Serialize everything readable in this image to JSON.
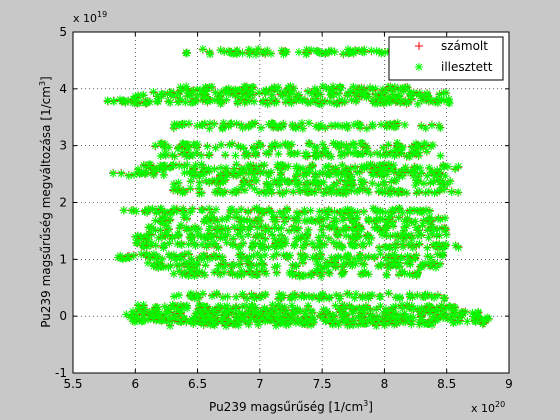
{
  "chart_data": {
    "type": "scatter",
    "xlabel": "Pu239  magsűrűség [1/cm",
    "xlabel_sup": "3",
    "xlabel_end": "]",
    "ylabel": "Pu239  magsűrűség megváltozása [1/cm",
    "ylabel_sup": "3",
    "ylabel_end": "]",
    "x_multiplier": "x 10",
    "x_multiplier_exp": "20",
    "y_multiplier": "x 10",
    "y_multiplier_exp": "19",
    "xlim": [
      5.5,
      9
    ],
    "ylim": [
      -1,
      5
    ],
    "x_ticks": [
      "5.5",
      "6",
      "6.5",
      "7",
      "7.5",
      "8",
      "8.5",
      "9"
    ],
    "y_ticks": [
      "-1",
      "0",
      "1",
      "2",
      "3",
      "4",
      "5"
    ],
    "grid": true,
    "legend_position": "top-right",
    "series": [
      {
        "name": "számolt",
        "marker": "+",
        "color": "#ff0000"
      },
      {
        "name": "illesztett",
        "marker": "*",
        "color": "#00ff00"
      }
    ],
    "bands": [
      {
        "y": 4.65,
        "x_min": 6.4,
        "x_max": 8.05,
        "n": 70
      },
      {
        "y": 4.0,
        "x_min": 6.35,
        "x_max": 8.2,
        "n": 90
      },
      {
        "y": 3.9,
        "x_min": 6.0,
        "x_max": 8.5,
        "n": 110
      },
      {
        "y": 3.78,
        "x_min": 5.77,
        "x_max": 8.6,
        "n": 140
      },
      {
        "y": 3.35,
        "x_min": 6.3,
        "x_max": 8.45,
        "n": 90
      },
      {
        "y": 3.0,
        "x_min": 6.1,
        "x_max": 8.4,
        "n": 90
      },
      {
        "y": 2.85,
        "x_min": 6.2,
        "x_max": 8.5,
        "n": 80
      },
      {
        "y": 2.62,
        "x_min": 6.0,
        "x_max": 8.6,
        "n": 110
      },
      {
        "y": 2.5,
        "x_min": 5.8,
        "x_max": 8.5,
        "n": 110
      },
      {
        "y": 2.35,
        "x_min": 6.3,
        "x_max": 8.55,
        "n": 90
      },
      {
        "y": 2.2,
        "x_min": 6.3,
        "x_max": 8.6,
        "n": 90
      },
      {
        "y": 1.85,
        "x_min": 5.9,
        "x_max": 8.4,
        "n": 110
      },
      {
        "y": 1.7,
        "x_min": 6.1,
        "x_max": 8.5,
        "n": 100
      },
      {
        "y": 1.55,
        "x_min": 6.1,
        "x_max": 8.5,
        "n": 100
      },
      {
        "y": 1.4,
        "x_min": 6.0,
        "x_max": 8.5,
        "n": 100
      },
      {
        "y": 1.25,
        "x_min": 6.0,
        "x_max": 8.6,
        "n": 110
      },
      {
        "y": 1.05,
        "x_min": 5.85,
        "x_max": 8.5,
        "n": 110
      },
      {
        "y": 0.9,
        "x_min": 6.1,
        "x_max": 8.45,
        "n": 100
      },
      {
        "y": 0.75,
        "x_min": 6.3,
        "x_max": 8.3,
        "n": 80
      },
      {
        "y": 0.35,
        "x_min": 6.3,
        "x_max": 8.5,
        "n": 90
      },
      {
        "y": 0.15,
        "x_min": 6.0,
        "x_max": 8.6,
        "n": 120
      },
      {
        "y": 0.05,
        "x_min": 5.9,
        "x_max": 8.8,
        "n": 140
      },
      {
        "y": -0.05,
        "x_min": 5.95,
        "x_max": 8.85,
        "n": 160
      },
      {
        "y": -0.12,
        "x_min": 6.2,
        "x_max": 8.85,
        "n": 120
      }
    ]
  }
}
